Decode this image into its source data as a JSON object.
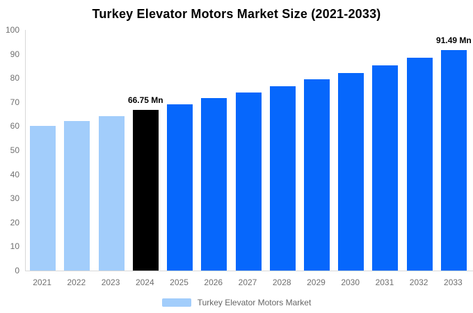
{
  "title": "Turkey Elevator Motors Market Size (2021-2033)",
  "colors": {
    "historical": "#a2cdfb",
    "base_year": "#000000",
    "forecast": "#0667fc",
    "axis_line": "#d8d8d8",
    "axis_text": "#6f6f6f",
    "data_label_text": "#000000",
    "legend_text": "#666666",
    "background": "#ffffff"
  },
  "legend": {
    "label": "Turkey Elevator Motors Market",
    "swatch_color": "#a2cdfb"
  },
  "chart_data": {
    "type": "bar",
    "title": "Turkey Elevator Motors Market Size (2021-2033)",
    "categories": [
      "2021",
      "2022",
      "2023",
      "2024",
      "2025",
      "2026",
      "2027",
      "2028",
      "2029",
      "2030",
      "2031",
      "2032",
      "2033"
    ],
    "values": [
      60.0,
      62.1,
      64.3,
      66.75,
      69.1,
      71.6,
      74.1,
      76.7,
      79.4,
      82.2,
      85.2,
      88.3,
      91.49
    ],
    "unit": "Mn",
    "segments": [
      "historical",
      "historical",
      "historical",
      "base_year",
      "forecast",
      "forecast",
      "forecast",
      "forecast",
      "forecast",
      "forecast",
      "forecast",
      "forecast",
      "forecast"
    ],
    "annotations": [
      {
        "category": "2024",
        "text": "66.75 Mn"
      },
      {
        "category": "2033",
        "text": "91.49 Mn"
      }
    ],
    "xlabel": "",
    "ylabel": "",
    "ylim": [
      0,
      100
    ],
    "yticks": [
      0,
      10,
      20,
      30,
      40,
      50,
      60,
      70,
      80,
      90,
      100
    ],
    "grid": false,
    "legend_position": "bottom",
    "legend_entries": [
      "Turkey Elevator Motors Market"
    ]
  }
}
